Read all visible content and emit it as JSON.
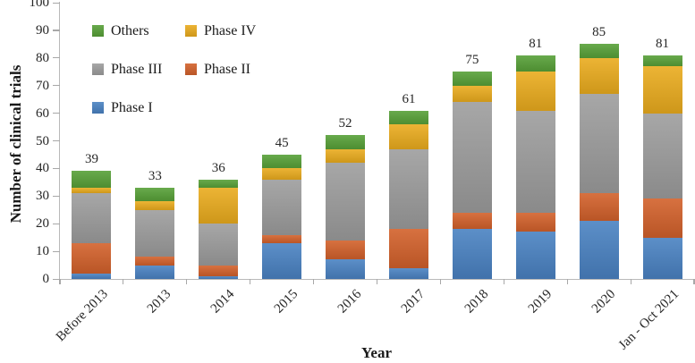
{
  "chart_data": {
    "type": "bar",
    "stacked": true,
    "title": "",
    "xlabel": "Year",
    "ylabel": "Number of clinical trials",
    "ylim": [
      0,
      100
    ],
    "yticks": [
      0,
      10,
      20,
      30,
      40,
      50,
      60,
      70,
      80,
      90,
      100
    ],
    "grid": false,
    "background": "#ffffff",
    "categories": [
      "Before 2013",
      "2013",
      "2014",
      "2015",
      "2016",
      "2017",
      "2018",
      "2019",
      "2020",
      "Jan - Oct 2021"
    ],
    "series": [
      {
        "name": "Phase I",
        "color": "#4a82c2",
        "values": [
          2,
          5,
          1,
          13,
          7,
          4,
          18,
          17,
          21,
          15
        ]
      },
      {
        "name": "Phase II",
        "color": "#d2612b",
        "values": [
          11,
          3,
          4,
          3,
          7,
          14,
          6,
          7,
          10,
          14
        ]
      },
      {
        "name": "Phase III",
        "color": "#9d9d9d",
        "values": [
          18,
          17,
          15,
          20,
          28,
          29,
          40,
          37,
          36,
          31
        ]
      },
      {
        "name": "Phase IV",
        "color": "#eaac1e",
        "values": [
          2,
          3,
          13,
          4,
          5,
          9,
          6,
          14,
          13,
          17
        ]
      },
      {
        "name": "Others",
        "color": "#57a038",
        "values": [
          6,
          5,
          3,
          5,
          5,
          5,
          5,
          6,
          5,
          4
        ]
      }
    ],
    "totals": [
      39,
      33,
      36,
      45,
      52,
      61,
      75,
      81,
      85,
      81
    ],
    "legend": {
      "position": "upper-left-inside",
      "columns": 2,
      "order": [
        "Others",
        "Phase IV",
        "Phase III",
        "Phase II",
        "Phase I"
      ]
    },
    "axis_color": "#b9b9b9"
  }
}
